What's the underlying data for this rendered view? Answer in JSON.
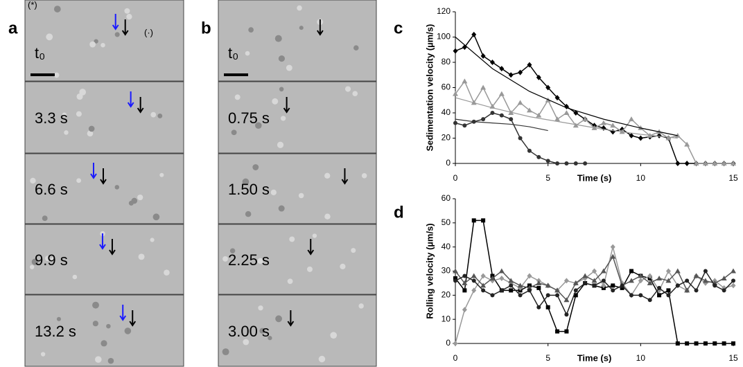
{
  "figure": {
    "panel_labels": [
      "a",
      "b",
      "c",
      "d"
    ],
    "annotations": [
      "(*)",
      "(·)"
    ],
    "panel_a": [
      "t₀",
      "3.3 s",
      "6.6 s",
      "9.9 s",
      "13.2 s"
    ],
    "panel_b": [
      "t₀",
      "0.75 s",
      "1.50 s",
      "2.25 s",
      "3.00 s"
    ]
  },
  "chart_data": [
    {
      "type": "line",
      "ylabel": "Sedimentation velocity (µm/s)",
      "xlabel": "Time (s)",
      "xlim": [
        0,
        15
      ],
      "ylim": [
        0,
        120
      ],
      "xticks": [
        0,
        5,
        10,
        15
      ],
      "yticks": [
        0,
        20,
        40,
        60,
        80,
        100,
        120
      ],
      "series": [
        {
          "color": "#000000",
          "marker": "diamond",
          "x": [
            0,
            0.5,
            1,
            1.5,
            2,
            2.5,
            3,
            3.5,
            4,
            4.5,
            5,
            5.5,
            6,
            6.5,
            7,
            7.5,
            8,
            8.5,
            9,
            9.5,
            10,
            10.5,
            11,
            11.5,
            12,
            12.5,
            13,
            13.5,
            14,
            14.5,
            15
          ],
          "values": [
            89,
            92,
            102,
            85,
            80,
            75,
            70,
            72,
            78,
            68,
            60,
            52,
            45,
            40,
            35,
            30,
            28,
            25,
            27,
            22,
            20,
            21,
            22,
            20,
            0,
            0,
            0,
            0,
            0,
            0,
            0
          ]
        },
        {
          "color": "#999999",
          "marker": "triangle",
          "x": [
            0,
            0.5,
            1,
            1.5,
            2,
            2.5,
            3,
            3.5,
            4,
            4.5,
            5,
            5.5,
            6,
            6.5,
            7,
            7.5,
            8,
            8.5,
            9,
            9.5,
            10,
            10.5,
            11,
            11.5,
            12,
            12.5,
            13,
            13.5,
            14,
            14.5,
            15
          ],
          "values": [
            55,
            65,
            48,
            60,
            45,
            55,
            40,
            48,
            42,
            38,
            50,
            35,
            40,
            30,
            35,
            28,
            32,
            30,
            25,
            35,
            28,
            22,
            25,
            20,
            22,
            15,
            0,
            0,
            0,
            0,
            0
          ]
        },
        {
          "color": "#333333",
          "marker": "circle",
          "x": [
            0,
            0.5,
            1,
            1.5,
            2,
            2.5,
            3,
            3.5,
            4,
            4.5,
            5,
            5.5,
            6,
            6.5,
            7
          ],
          "values": [
            32,
            30,
            33,
            35,
            40,
            38,
            35,
            20,
            10,
            5,
            2,
            0,
            0,
            0,
            0
          ]
        },
        {
          "color": "#000000",
          "marker": "none",
          "x": [
            0,
            2,
            4,
            6,
            8,
            10,
            12
          ],
          "values": [
            100,
            75,
            57,
            44,
            35,
            28,
            22
          ]
        },
        {
          "color": "#999999",
          "marker": "none",
          "x": [
            0,
            2,
            4,
            6,
            8,
            10,
            12
          ],
          "values": [
            52,
            44,
            37,
            32,
            27,
            23,
            20
          ]
        },
        {
          "color": "#333333",
          "marker": "none",
          "x": [
            0,
            1,
            2,
            3,
            4,
            5
          ],
          "values": [
            35,
            33,
            32,
            31,
            29,
            26
          ]
        }
      ]
    },
    {
      "type": "line",
      "ylabel": "Rolling velocity (µm/s)",
      "xlabel": "Time (s)",
      "xlim": [
        0,
        15
      ],
      "ylim": [
        0,
        60
      ],
      "xticks": [
        0,
        5,
        10,
        15
      ],
      "yticks": [
        0,
        10,
        20,
        30,
        40,
        50,
        60
      ],
      "series": [
        {
          "color": "#000000",
          "marker": "square",
          "x": [
            0,
            0.5,
            1,
            1.5,
            2,
            2.5,
            3,
            3.5,
            4,
            4.5,
            5,
            5.5,
            6,
            6.5,
            7,
            7.5,
            8,
            8.5,
            9,
            9.5,
            10,
            10.5,
            11,
            11.5,
            12,
            12.5,
            13,
            13.5,
            14,
            14.5,
            15
          ],
          "values": [
            27,
            22,
            51,
            51,
            28,
            22,
            22,
            22,
            24,
            23,
            15,
            5,
            5,
            20,
            25,
            24,
            23,
            24,
            23,
            30,
            28,
            27,
            20,
            22,
            0,
            0,
            0,
            0,
            0,
            0,
            0
          ]
        },
        {
          "color": "#999999",
          "marker": "diamond",
          "x": [
            0,
            0.5,
            1,
            1.5,
            2,
            2.5,
            3,
            3.5,
            4,
            4.5,
            5,
            5.5,
            6,
            6.5,
            7,
            7.5,
            8,
            8.5,
            9,
            9.5,
            10,
            10.5,
            11,
            11.5,
            12,
            12.5,
            13,
            13.5,
            14,
            14.5,
            15
          ],
          "values": [
            0,
            14,
            22,
            28,
            26,
            27,
            25,
            23,
            28,
            26,
            24,
            22,
            26,
            25,
            27,
            30,
            24,
            40,
            25,
            20,
            26,
            28,
            22,
            30,
            24,
            22,
            28,
            25,
            26,
            23,
            24
          ]
        },
        {
          "color": "#555555",
          "marker": "triangle",
          "x": [
            0,
            0.5,
            1,
            1.5,
            2,
            2.5,
            3,
            3.5,
            4,
            4.5,
            5,
            5.5,
            6,
            6.5,
            7,
            7.5,
            8,
            8.5,
            9,
            9.5,
            10,
            10.5,
            11,
            11.5,
            12,
            12.5,
            13,
            13.5,
            14,
            14.5,
            15
          ],
          "values": [
            30,
            25,
            28,
            24,
            27,
            30,
            26,
            24,
            23,
            25,
            24,
            22,
            18,
            25,
            28,
            26,
            30,
            36,
            24,
            26,
            28,
            25,
            27,
            26,
            30,
            22,
            28,
            26,
            25,
            27,
            30
          ]
        },
        {
          "color": "#222222",
          "marker": "circle",
          "x": [
            0,
            0.5,
            1,
            1.5,
            2,
            2.5,
            3,
            3.5,
            4,
            4.5,
            5,
            5.5,
            6,
            6.5,
            7,
            7.5,
            8,
            8.5,
            9,
            9.5,
            10,
            10.5,
            11,
            11.5,
            12,
            12.5,
            13,
            13.5,
            14,
            14.5,
            15
          ],
          "values": [
            26,
            28,
            26,
            22,
            20,
            22,
            24,
            20,
            22,
            15,
            20,
            20,
            12,
            22,
            25,
            24,
            26,
            22,
            24,
            20,
            20,
            18,
            23,
            20,
            24,
            26,
            22,
            30,
            24,
            22,
            26
          ]
        }
      ]
    }
  ]
}
